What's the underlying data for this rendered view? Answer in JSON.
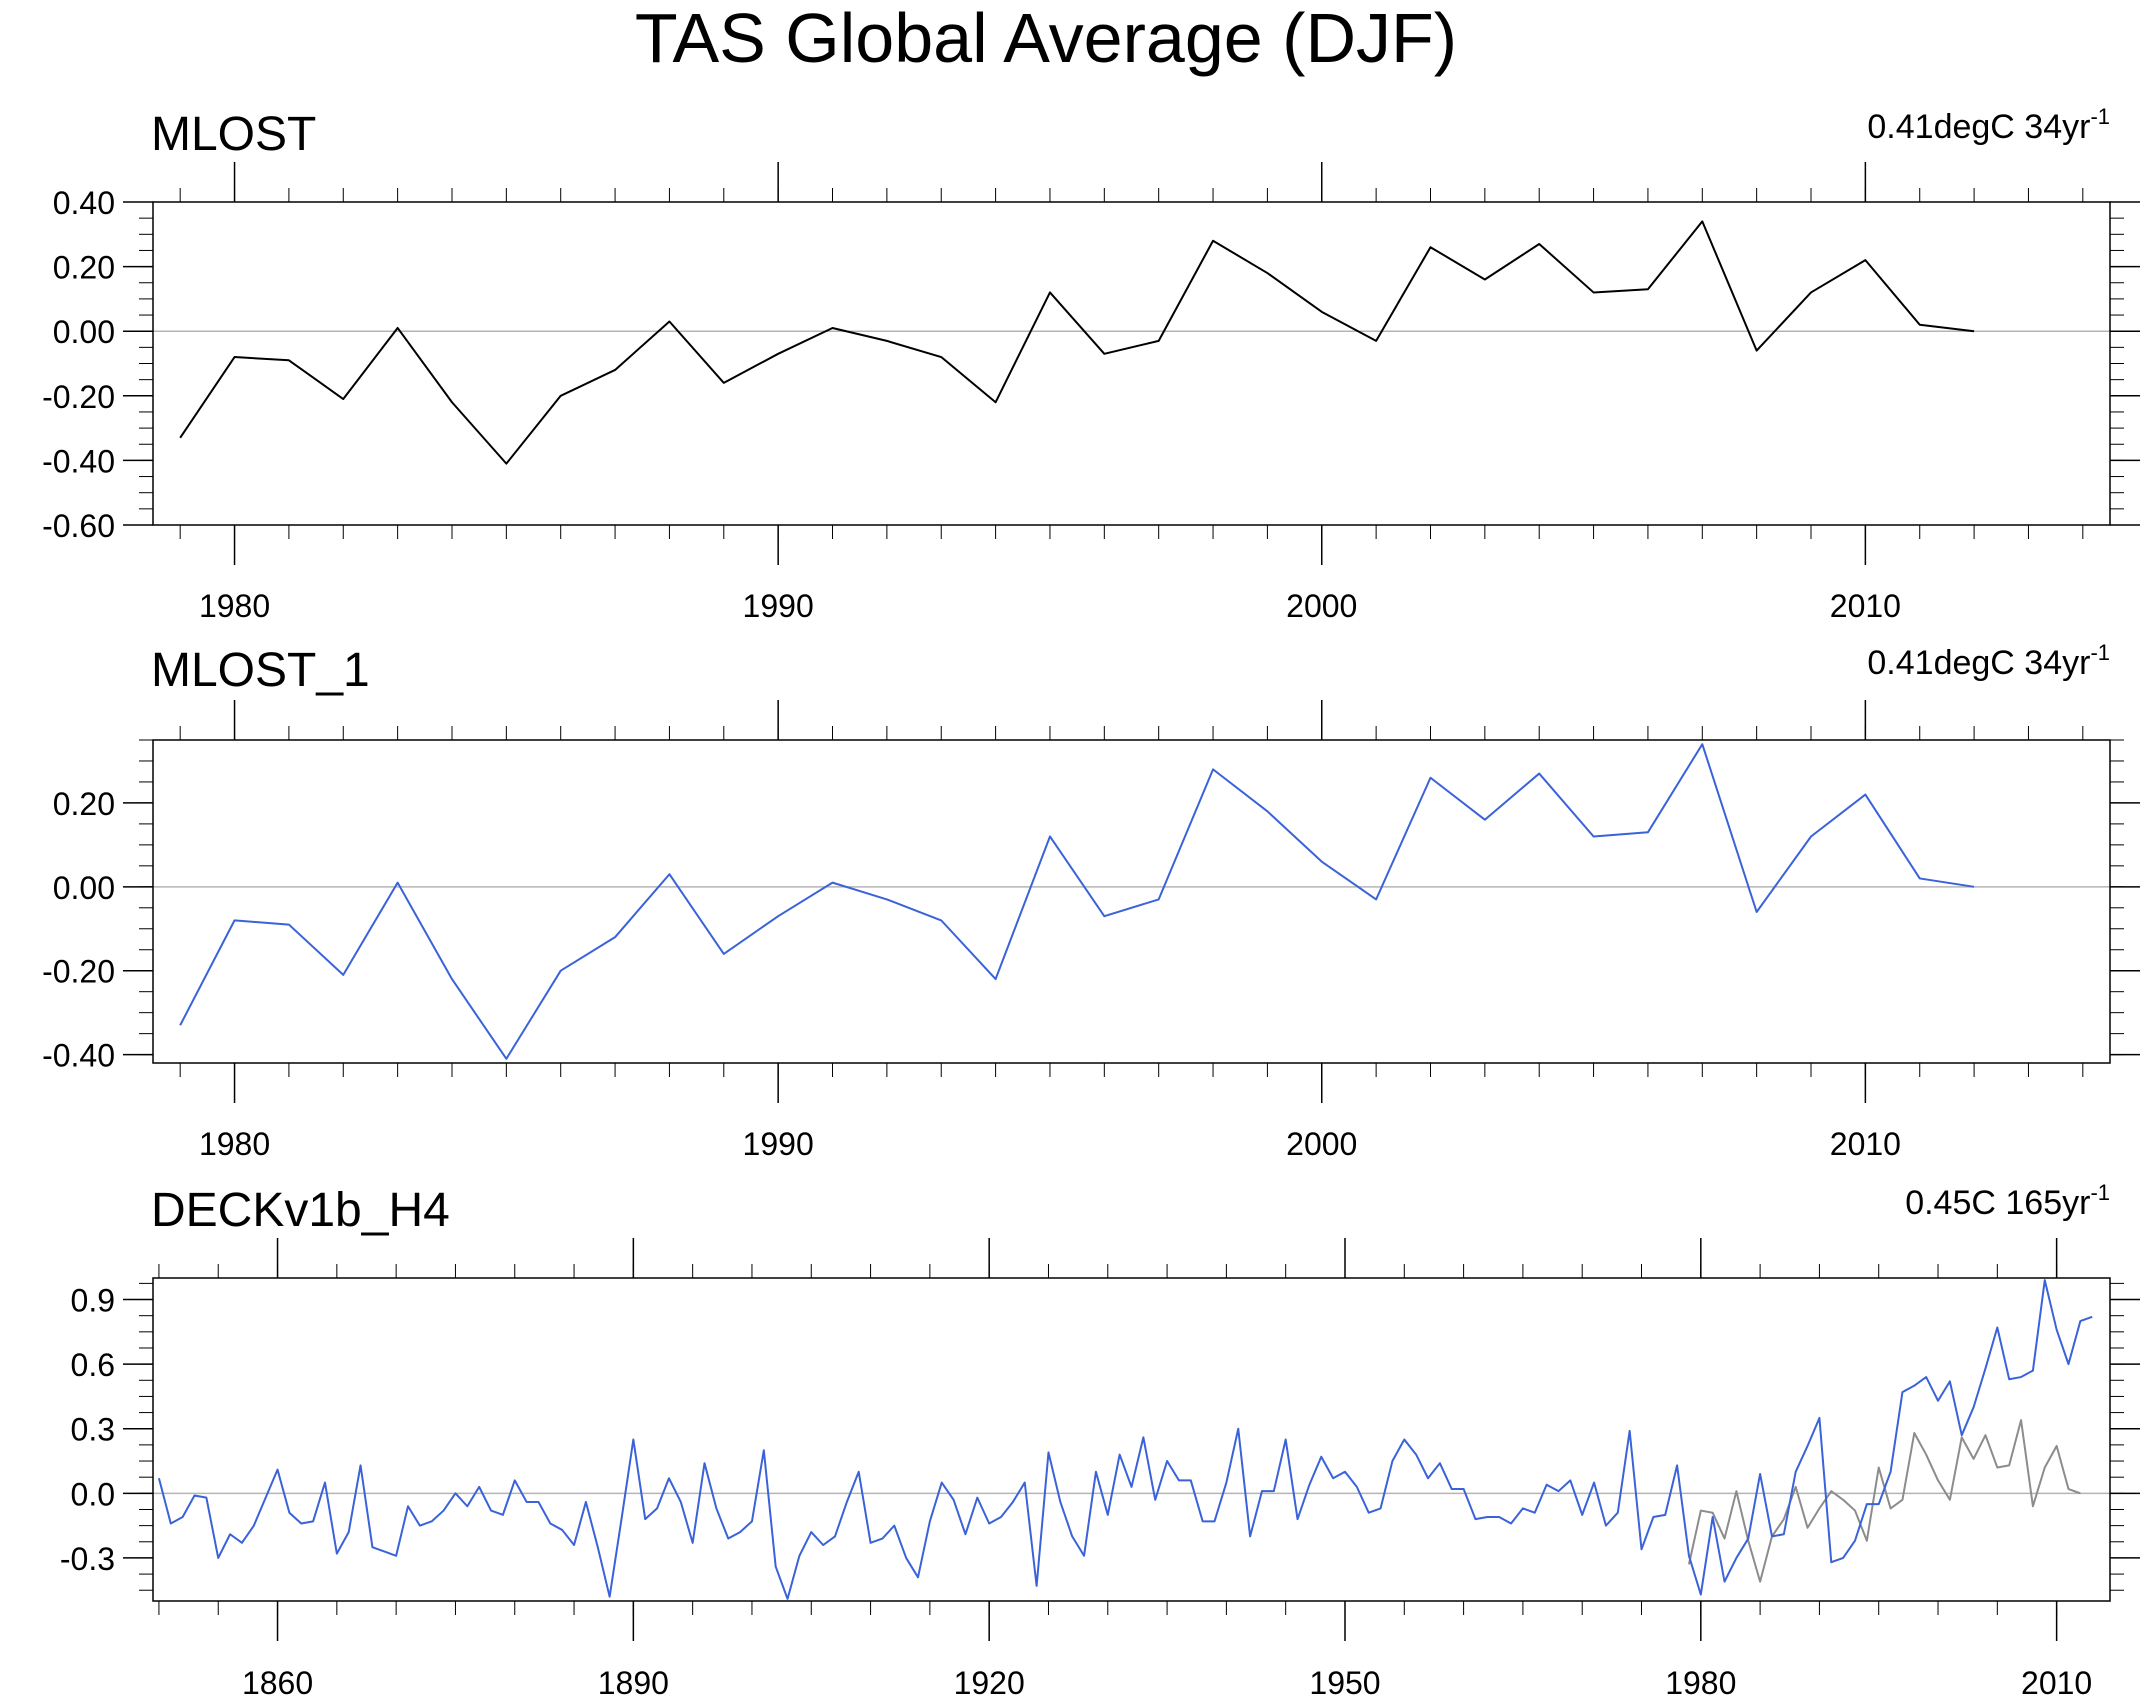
{
  "figure_title": "TAS Global Average (DJF)",
  "chart_data": [
    {
      "type": "line",
      "title": "MLOST",
      "trend_label": "0.41degC 34yr",
      "trend_exp": "-1",
      "xlim": [
        1978.5,
        2014.5
      ],
      "ylim": [
        -0.6,
        0.4
      ],
      "yticks": [
        -0.6,
        -0.4,
        -0.2,
        0.0,
        0.2,
        0.4
      ],
      "ytick_labels": [
        "-0.60",
        "-0.40",
        "-0.20",
        "0.00",
        "0.20",
        "0.40"
      ],
      "xticks": [
        1980,
        1990,
        2000,
        2010
      ],
      "xtick_labels": [
        "1980",
        "1990",
        "2000",
        "2010"
      ],
      "series": [
        {
          "name": "MLOST",
          "color": "#000000",
          "x": [
            1979,
            1980,
            1981,
            1982,
            1983,
            1984,
            1985,
            1986,
            1987,
            1988,
            1989,
            1990,
            1991,
            1992,
            1993,
            1994,
            1995,
            1996,
            1997,
            1998,
            1999,
            2000,
            2001,
            2002,
            2003,
            2004,
            2005,
            2006,
            2007,
            2008,
            2009,
            2010,
            2011,
            2012
          ],
          "values": [
            -0.33,
            -0.08,
            -0.09,
            -0.21,
            0.01,
            -0.22,
            -0.41,
            -0.2,
            -0.12,
            0.03,
            -0.16,
            -0.07,
            0.01,
            -0.03,
            -0.08,
            -0.22,
            0.12,
            -0.07,
            -0.03,
            0.28,
            0.18,
            0.06,
            -0.03,
            0.26,
            0.16,
            0.27,
            0.12,
            0.13,
            0.34,
            -0.06,
            0.12,
            0.22,
            0.02,
            0.0
          ]
        }
      ]
    },
    {
      "type": "line",
      "title": "MLOST_1",
      "trend_label": "0.41degC 34yr",
      "trend_exp": "-1",
      "xlim": [
        1978.5,
        2014.5
      ],
      "ylim": [
        -0.42,
        0.35
      ],
      "yticks": [
        -0.4,
        -0.2,
        0.0,
        0.2
      ],
      "ytick_labels": [
        "-0.40",
        "-0.20",
        "0.00",
        "0.20"
      ],
      "xticks": [
        1980,
        1990,
        2000,
        2010
      ],
      "xtick_labels": [
        "1980",
        "1990",
        "2000",
        "2010"
      ],
      "series": [
        {
          "name": "MLOST_1",
          "color": "#3a62d9",
          "x": [
            1979,
            1980,
            1981,
            1982,
            1983,
            1984,
            1985,
            1986,
            1987,
            1988,
            1989,
            1990,
            1991,
            1992,
            1993,
            1994,
            1995,
            1996,
            1997,
            1998,
            1999,
            2000,
            2001,
            2002,
            2003,
            2004,
            2005,
            2006,
            2007,
            2008,
            2009,
            2010,
            2011,
            2012
          ],
          "values": [
            -0.33,
            -0.08,
            -0.09,
            -0.21,
            0.01,
            -0.22,
            -0.41,
            -0.2,
            -0.12,
            0.03,
            -0.16,
            -0.07,
            0.01,
            -0.03,
            -0.08,
            -0.22,
            0.12,
            -0.07,
            -0.03,
            0.28,
            0.18,
            0.06,
            -0.03,
            0.26,
            0.16,
            0.27,
            0.12,
            0.13,
            0.34,
            -0.06,
            0.12,
            0.22,
            0.02,
            0.0
          ]
        }
      ]
    },
    {
      "type": "line",
      "title": "DECKv1b_H4",
      "trend_label": "0.45C 165yr",
      "trend_exp": "-1",
      "xlim": [
        1849.5,
        2014.5
      ],
      "ylim": [
        -0.5,
        1.0
      ],
      "yticks": [
        -0.3,
        0.0,
        0.3,
        0.6,
        0.9
      ],
      "ytick_labels": [
        "-0.3",
        "0.0",
        "0.3",
        "0.6",
        "0.9"
      ],
      "xticks": [
        1860,
        1890,
        1920,
        1950,
        1980,
        2010
      ],
      "xtick_labels": [
        "1860",
        "1890",
        "1920",
        "1950",
        "1980",
        "2010"
      ],
      "series": [
        {
          "name": "DECKv1b_H4",
          "color": "#3a62d9",
          "x_start": 1850,
          "values": [
            0.07,
            -0.14,
            -0.11,
            -0.01,
            -0.02,
            -0.3,
            -0.19,
            -0.23,
            -0.15,
            -0.02,
            0.11,
            -0.09,
            -0.14,
            -0.13,
            0.05,
            -0.28,
            -0.18,
            0.13,
            -0.25,
            -0.27,
            -0.29,
            -0.06,
            -0.15,
            -0.13,
            -0.08,
            0.0,
            -0.06,
            0.03,
            -0.08,
            -0.1,
            0.06,
            -0.04,
            -0.04,
            -0.14,
            -0.17,
            -0.24,
            -0.04,
            -0.25,
            -0.48,
            -0.12,
            0.25,
            -0.12,
            -0.07,
            0.07,
            -0.04,
            -0.23,
            0.14,
            -0.07,
            -0.21,
            -0.18,
            -0.13,
            0.2,
            -0.34,
            -0.49,
            -0.29,
            -0.18,
            -0.24,
            -0.2,
            -0.04,
            0.1,
            -0.23,
            -0.21,
            -0.15,
            -0.3,
            -0.39,
            -0.13,
            0.05,
            -0.03,
            -0.19,
            -0.02,
            -0.14,
            -0.11,
            -0.04,
            0.05,
            -0.43,
            0.19,
            -0.04,
            -0.2,
            -0.29,
            0.1,
            -0.1,
            0.18,
            0.03,
            0.26,
            -0.03,
            0.15,
            0.06,
            0.06,
            -0.13,
            -0.13,
            0.05,
            0.3,
            -0.2,
            0.01,
            0.01,
            0.25,
            -0.12,
            0.04,
            0.17,
            0.07,
            0.1,
            0.03,
            -0.09,
            -0.07,
            0.15,
            0.25,
            0.18,
            0.07,
            0.14,
            0.02,
            0.02,
            -0.12,
            -0.11,
            -0.11,
            -0.14,
            -0.07,
            -0.09,
            0.04,
            0.01,
            0.06,
            -0.1,
            0.05,
            -0.15,
            -0.09,
            0.29,
            -0.26,
            -0.11,
            -0.1,
            0.13,
            -0.29,
            -0.47,
            -0.11,
            -0.41,
            -0.3,
            -0.21,
            0.09,
            -0.2,
            -0.19,
            0.1,
            0.22,
            0.35,
            -0.32,
            -0.3,
            -0.22,
            -0.05,
            -0.05,
            0.1,
            0.47,
            0.5,
            0.54,
            0.43,
            0.52,
            0.27,
            0.4,
            0.58,
            0.77,
            0.53,
            0.54,
            0.57,
            0.99,
            0.76,
            0.6,
            0.8,
            0.82
          ]
        },
        {
          "name": "MLOST",
          "color": "#8c8c8c",
          "x_start": 1979,
          "values": [
            -0.33,
            -0.08,
            -0.09,
            -0.21,
            0.01,
            -0.22,
            -0.41,
            -0.2,
            -0.12,
            0.03,
            -0.16,
            -0.07,
            0.01,
            -0.03,
            -0.08,
            -0.22,
            0.12,
            -0.07,
            -0.03,
            0.28,
            0.18,
            0.06,
            -0.03,
            0.26,
            0.16,
            0.27,
            0.12,
            0.13,
            0.34,
            -0.06,
            0.12,
            0.22,
            0.02,
            0.0
          ]
        }
      ]
    }
  ]
}
